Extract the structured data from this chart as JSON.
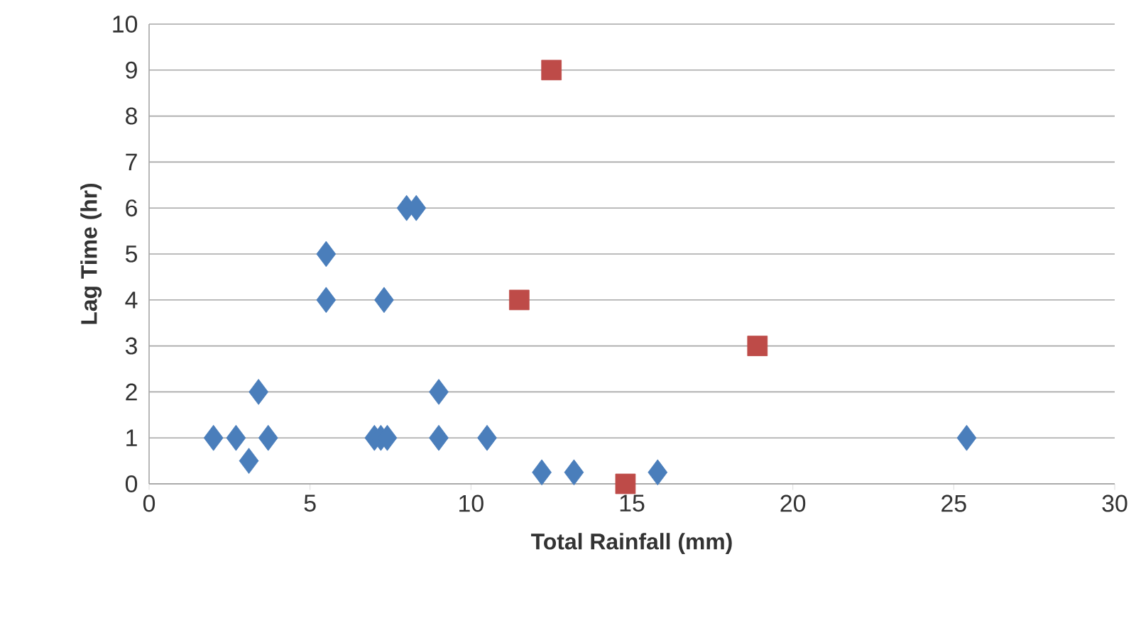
{
  "chart_data": {
    "type": "scatter",
    "xlabel": "Total Rainfall (mm)",
    "ylabel": "Lag Time (hr)",
    "xlim": [
      0,
      30
    ],
    "xticks": [
      0,
      5,
      10,
      15,
      20,
      25,
      30
    ],
    "ylim": [
      0,
      10
    ],
    "yticks": [
      0,
      1,
      2,
      3,
      4,
      5,
      6,
      7,
      8,
      9,
      10
    ],
    "grid": "y",
    "series": [
      {
        "color": "#4a7ebb",
        "marker": "diamond",
        "x": [
          2.0,
          2.7,
          3.1,
          3.7,
          3.4,
          5.5,
          5.5,
          7.3,
          8.0,
          8.3,
          7.0,
          7.2,
          7.4,
          9.0,
          9.0,
          10.5,
          12.2,
          13.2,
          15.8,
          25.4
        ],
        "values": [
          1,
          1,
          0.5,
          1,
          2,
          5,
          4,
          4,
          6,
          6,
          1,
          1,
          1,
          2,
          1,
          1,
          0.25,
          0.25,
          0.25,
          1
        ]
      },
      {
        "color": "#be4b48",
        "marker": "square",
        "x": [
          12.5,
          11.5,
          18.9,
          14.8
        ],
        "values": [
          9,
          4,
          3,
          0
        ]
      }
    ]
  }
}
